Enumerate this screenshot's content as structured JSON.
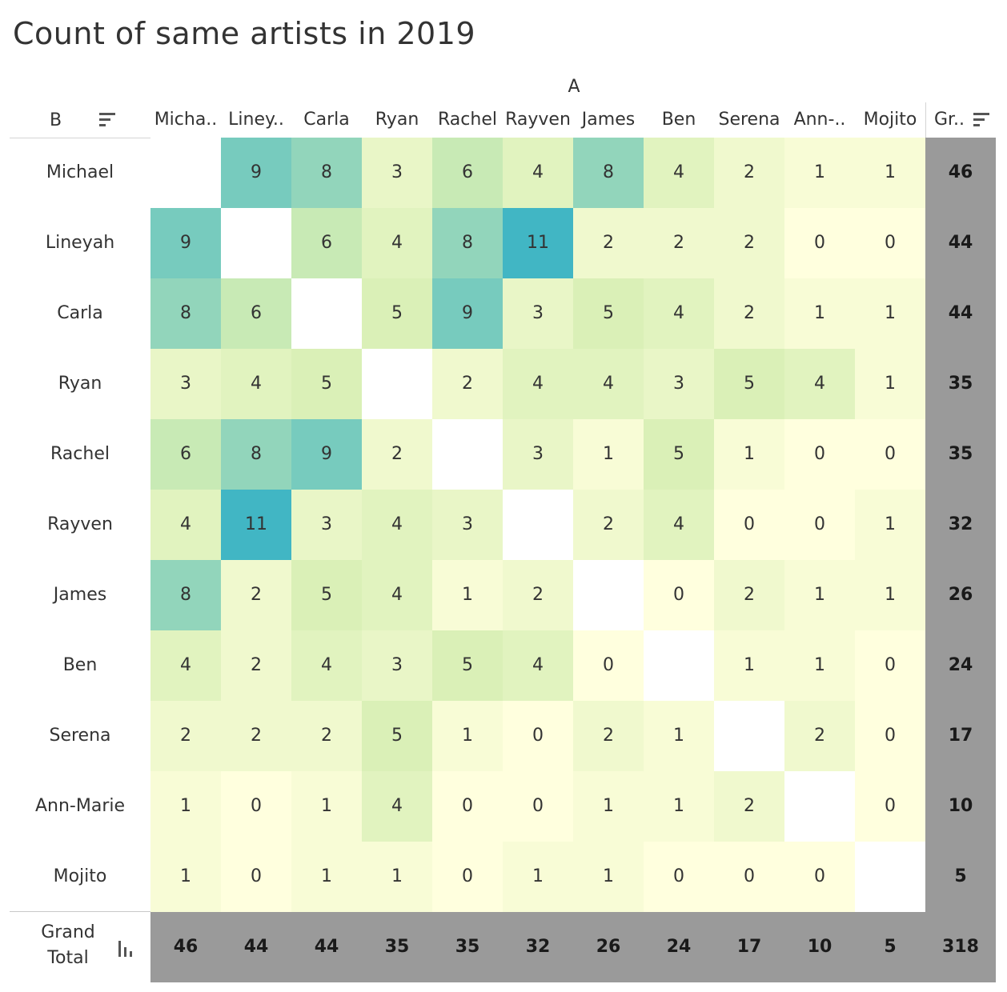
{
  "chart_data": {
    "type": "heatmap",
    "title": "Count of same artists in 2019",
    "column_field": "A",
    "row_field": "B",
    "columns": [
      "Micha..",
      "Liney..",
      "Carla",
      "Ryan",
      "Rachel",
      "Rayven",
      "James",
      "Ben",
      "Serena",
      "Ann-..",
      "Mojito"
    ],
    "rows": [
      "Michael",
      "Lineyah",
      "Carla",
      "Ryan",
      "Rachel",
      "Rayven",
      "James",
      "Ben",
      "Serena",
      "Ann-Marie",
      "Mojito"
    ],
    "values": [
      [
        null,
        9,
        8,
        3,
        6,
        4,
        8,
        4,
        2,
        1,
        1
      ],
      [
        9,
        null,
        6,
        4,
        8,
        11,
        2,
        2,
        2,
        0,
        0
      ],
      [
        8,
        6,
        null,
        5,
        9,
        3,
        5,
        4,
        2,
        1,
        1
      ],
      [
        3,
        4,
        5,
        null,
        2,
        4,
        4,
        3,
        5,
        4,
        1
      ],
      [
        6,
        8,
        9,
        2,
        null,
        3,
        1,
        5,
        1,
        0,
        0
      ],
      [
        4,
        11,
        3,
        4,
        3,
        null,
        2,
        4,
        0,
        0,
        1
      ],
      [
        8,
        2,
        5,
        4,
        1,
        2,
        null,
        0,
        2,
        1,
        1
      ],
      [
        4,
        2,
        4,
        3,
        5,
        4,
        0,
        null,
        1,
        1,
        0
      ],
      [
        2,
        2,
        2,
        5,
        1,
        0,
        2,
        1,
        null,
        2,
        0
      ],
      [
        1,
        0,
        1,
        4,
        0,
        0,
        1,
        1,
        2,
        null,
        0
      ],
      [
        1,
        0,
        1,
        1,
        0,
        1,
        1,
        0,
        0,
        0,
        null
      ]
    ],
    "row_totals": [
      46,
      44,
      44,
      35,
      35,
      32,
      26,
      24,
      17,
      10,
      5
    ],
    "column_totals": [
      46,
      44,
      44,
      35,
      35,
      32,
      26,
      24,
      17,
      10,
      5
    ],
    "grand_total": 318,
    "grand_total_column_label": "Gr..",
    "grand_total_row_label": "Grand Total",
    "color_scale": {
      "low": "#ffffde",
      "mid": "#d6efb3",
      "high": "#41b6c4"
    }
  },
  "icons": [
    "sort-descending-icon",
    "bar-chart-icon"
  ]
}
